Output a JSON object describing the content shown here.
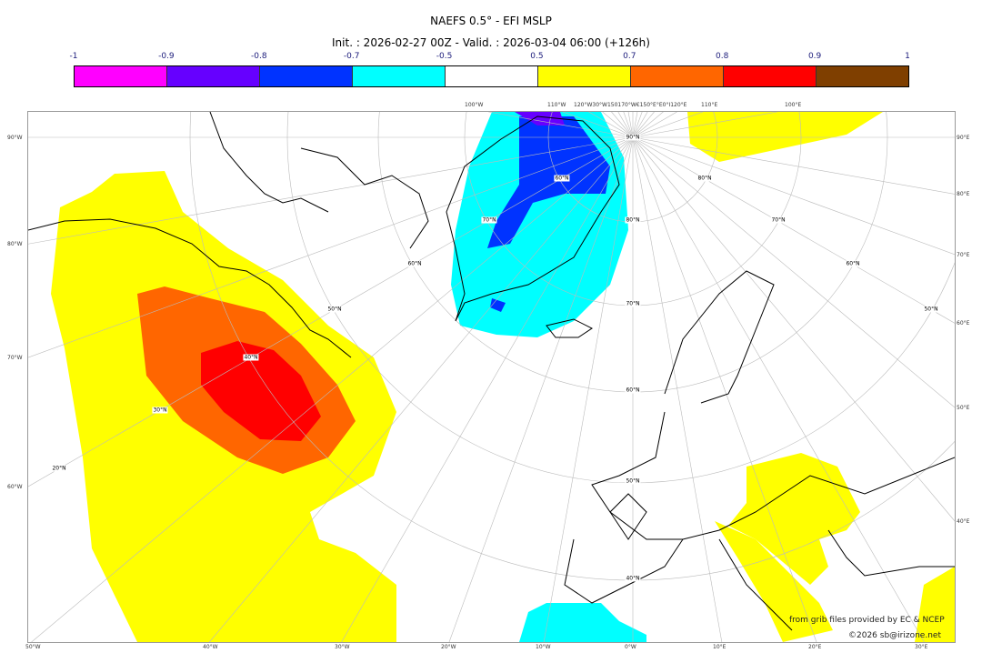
{
  "header": {
    "title": "NAEFS 0.5° - EFI MSLP",
    "subtitle": "Init. : 2026-02-27 00Z - Valid. : 2026-03-04 06:00 (+126h)"
  },
  "colorbar": {
    "tick_labels": [
      "-1",
      "-0.9",
      "-0.8",
      "-0.7",
      "-0.5",
      "0.5",
      "0.7",
      "0.8",
      "0.9",
      "1"
    ],
    "colors": [
      "#ff00ff",
      "#6600ff",
      "#0033ff",
      "#00ffff",
      "#ffffff",
      "#ffff00",
      "#ff6600",
      "#ff0000",
      "#7f3f00"
    ]
  },
  "map": {
    "projection": "polar stereographic",
    "left_labels": [
      "90°W",
      "80°W",
      "70°W",
      "60°W"
    ],
    "right_labels": [
      "90°E",
      "80°E",
      "70°E",
      "60°E",
      "50°E",
      "40°E"
    ],
    "bottom_labels": [
      "50°W",
      "40°W",
      "30°W",
      "20°W",
      "10°W",
      "0°W",
      "10°E",
      "20°E",
      "30°E"
    ],
    "top_labels": [
      "100°W",
      "110°W",
      "120°W30°W150170°W€150°E°E0°I120°E",
      "110°E",
      "100°E"
    ],
    "lat_labels": [
      "90°N",
      "80°N",
      "70°N",
      "60°N",
      "50°N",
      "40°N",
      "60°N",
      "70°N",
      "80°N",
      "70°N",
      "60°N",
      "50°N",
      "60°N",
      "50°N",
      "40°N",
      "30°N",
      "20°N"
    ],
    "colors": {
      "land_outline": "#000000",
      "grid": "#bbbbbb"
    }
  },
  "footer": {
    "source": "from grib files provided by EC & NCEP",
    "copyright": "©2026 sb@irizone.net"
  }
}
